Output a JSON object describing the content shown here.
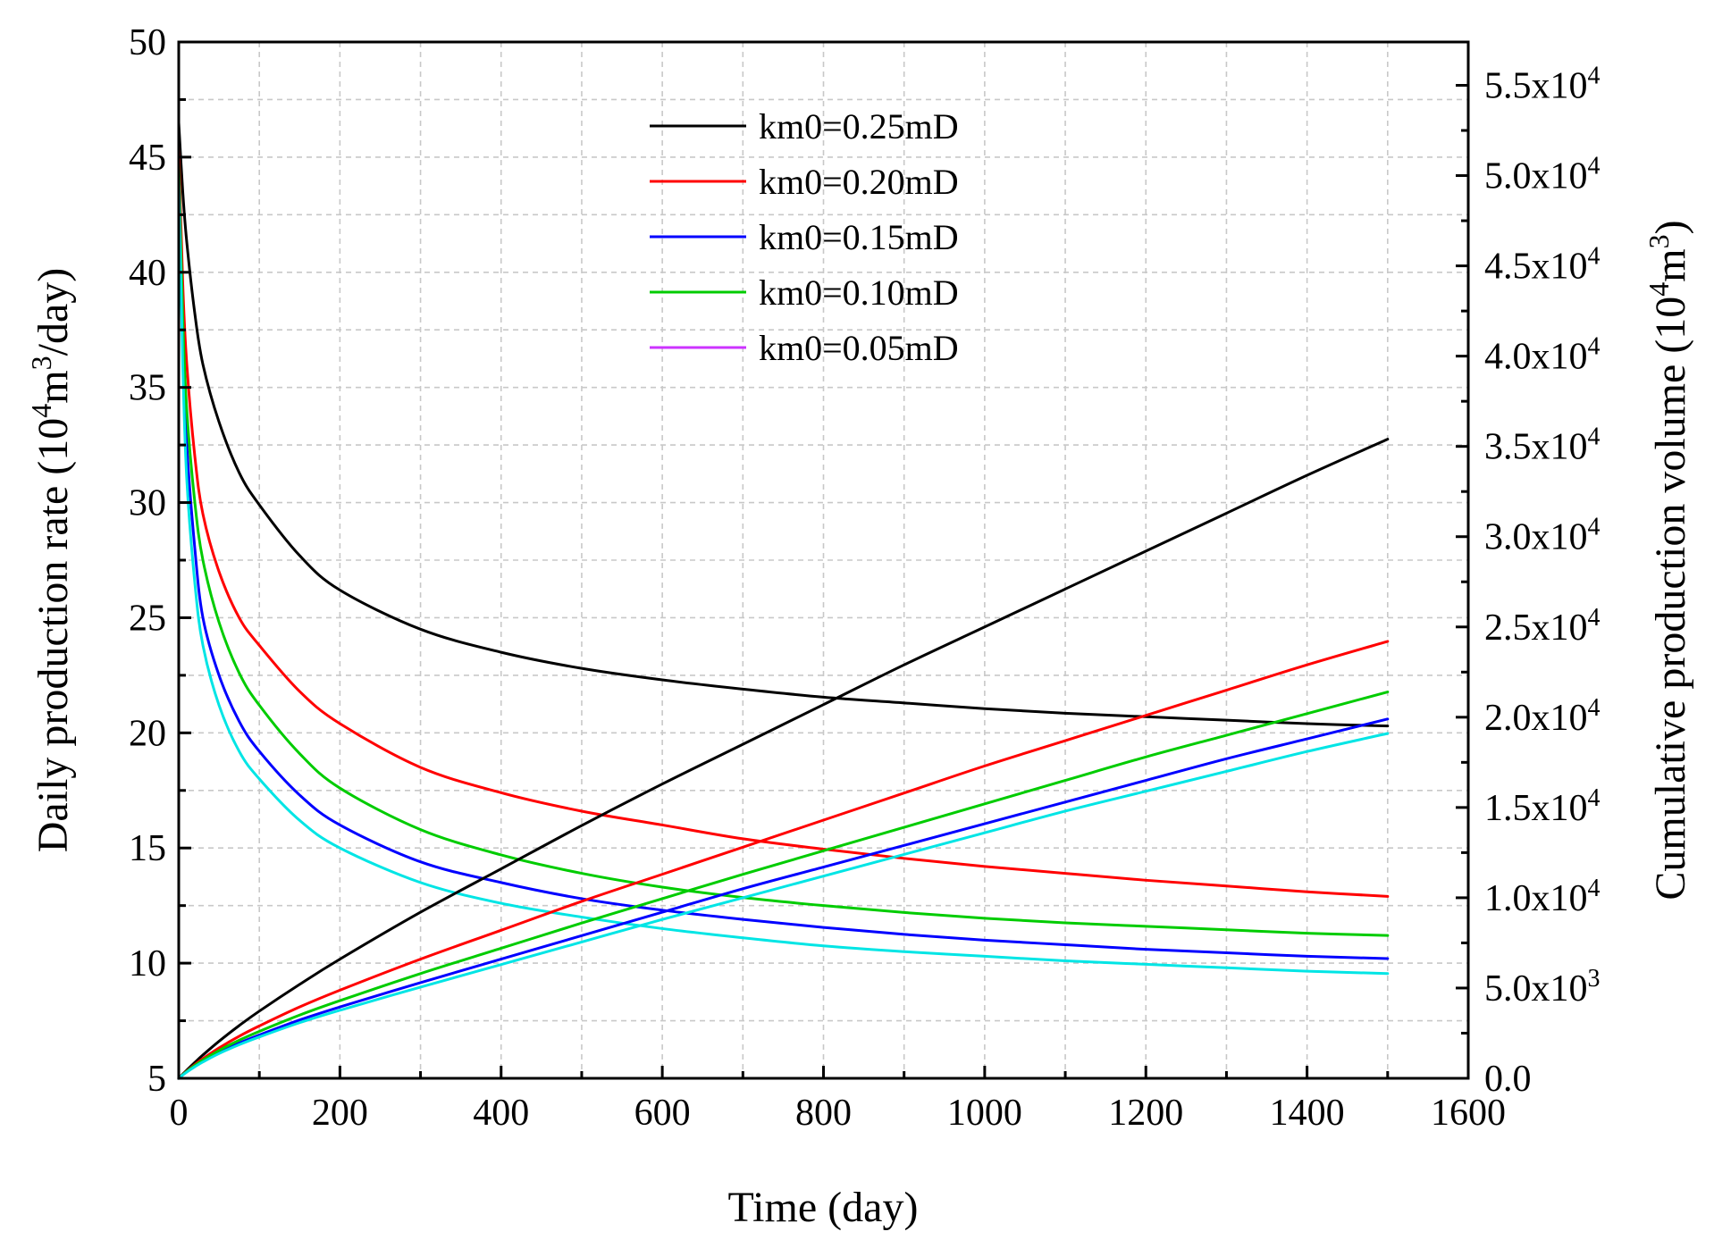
{
  "chart_data": {
    "type": "line",
    "title": "",
    "xlabel": "Time (day)",
    "ylabel": "Daily production rate (10^4m^3/day)",
    "ylabel_parts": [
      "Daily production rate (10",
      "4",
      "m",
      "3",
      "/day)"
    ],
    "y2label": "Cumulative production volume (10^4m^3)",
    "y2label_parts": [
      "Cumulative production volume (10",
      "4",
      "m",
      "3",
      ")"
    ],
    "xlim": [
      0,
      1600
    ],
    "ylim": [
      5,
      50
    ],
    "y2lim": [
      0,
      57400
    ],
    "x_ticks": [
      "0",
      "200",
      "400",
      "600",
      "800",
      "1000",
      "1200",
      "1400",
      "1600"
    ],
    "y_ticks": [
      "5",
      "10",
      "15",
      "20",
      "25",
      "30",
      "35",
      "40",
      "45",
      "50"
    ],
    "y2_ticks": [
      {
        "value": 0,
        "base": "0.0",
        "exp": ""
      },
      {
        "value": 5000,
        "base": "5.0x10",
        "exp": "3"
      },
      {
        "value": 10000,
        "base": "1.0x10",
        "exp": "4"
      },
      {
        "value": 15000,
        "base": "1.5x10",
        "exp": "4"
      },
      {
        "value": 20000,
        "base": "2.0x10",
        "exp": "4"
      },
      {
        "value": 25000,
        "base": "2.5x10",
        "exp": "4"
      },
      {
        "value": 30000,
        "base": "3.0x10",
        "exp": "4"
      },
      {
        "value": 35000,
        "base": "3.5x10",
        "exp": "4"
      },
      {
        "value": 40000,
        "base": "4.0x10",
        "exp": "4"
      },
      {
        "value": 45000,
        "base": "4.5x10",
        "exp": "4"
      },
      {
        "value": 50000,
        "base": "5.0x10",
        "exp": "4"
      },
      {
        "value": 55000,
        "base": "5.5x10",
        "exp": "4"
      }
    ],
    "grid": true,
    "legend_position": "top-center",
    "legend": [
      "km0=0.25mD",
      "km0=0.20mD",
      "km0=0.15mD",
      "km0=0.10mD",
      "km0=0.05mD"
    ],
    "legend_colors": [
      "#000000",
      "#ff0000",
      "#0000ff",
      "#00cc00",
      "#cc33ff"
    ],
    "x": [
      0,
      5,
      10,
      20,
      30,
      50,
      75,
      100,
      150,
      200,
      300,
      400,
      500,
      600,
      700,
      800,
      900,
      1000,
      1100,
      1200,
      1300,
      1400,
      1500
    ],
    "series": [
      {
        "name": "km0=0.25mD rate",
        "axis": "left",
        "color": "#000000",
        "values": [
          46.5,
          43.5,
          41.3,
          38.2,
          36.0,
          33.5,
          31.3,
          29.9,
          27.7,
          26.2,
          24.5,
          23.5,
          22.8,
          22.3,
          21.9,
          21.55,
          21.3,
          21.05,
          20.85,
          20.7,
          20.55,
          20.4,
          20.3
        ]
      },
      {
        "name": "km0=0.20mD rate",
        "axis": "left",
        "color": "#ff0000",
        "values": [
          45.5,
          39.5,
          36.0,
          32.0,
          29.5,
          27.0,
          25.0,
          23.8,
          21.8,
          20.4,
          18.5,
          17.4,
          16.6,
          16.0,
          15.4,
          14.95,
          14.55,
          14.2,
          13.9,
          13.6,
          13.35,
          13.1,
          12.9
        ]
      },
      {
        "name": "km0=0.15mD rate",
        "axis": "left",
        "color": "#0000ff",
        "values": [
          44.5,
          37.0,
          32.5,
          28.0,
          25.0,
          22.5,
          20.5,
          19.2,
          17.3,
          16.0,
          14.4,
          13.5,
          12.8,
          12.3,
          11.9,
          11.55,
          11.25,
          11.0,
          10.8,
          10.6,
          10.45,
          10.3,
          10.2
        ]
      },
      {
        "name": "km0=0.10mD rate",
        "axis": "left",
        "color": "#00cc00",
        "values": [
          44.8,
          38.0,
          34.0,
          30.0,
          27.5,
          24.8,
          22.6,
          21.2,
          19.1,
          17.6,
          15.8,
          14.7,
          13.9,
          13.3,
          12.85,
          12.5,
          12.2,
          11.95,
          11.75,
          11.6,
          11.45,
          11.3,
          11.2
        ]
      },
      {
        "name": "km0=0.05mD rate",
        "axis": "left",
        "color": "#00e5e5",
        "values": [
          44.2,
          36.0,
          31.0,
          26.5,
          23.8,
          21.2,
          19.2,
          18.0,
          16.2,
          15.0,
          13.5,
          12.6,
          12.0,
          11.5,
          11.1,
          10.75,
          10.5,
          10.3,
          10.1,
          9.95,
          9.8,
          9.65,
          9.55
        ]
      },
      {
        "name": "km0=0.25mD cumulative",
        "axis": "right",
        "color": "#000000",
        "values": [
          0,
          230,
          450,
          880,
          1290,
          2050,
          2920,
          3720,
          5200,
          6600,
          9200,
          11600,
          14000,
          16300,
          18500,
          20700,
          22900,
          25000,
          27100,
          29200,
          31300,
          33400,
          35400
        ]
      },
      {
        "name": "km0=0.20mD cumulative",
        "axis": "right",
        "color": "#ff0000",
        "values": [
          0,
          210,
          400,
          760,
          1090,
          1680,
          2330,
          2900,
          3950,
          4880,
          6600,
          8200,
          9800,
          11300,
          12800,
          14300,
          15800,
          17300,
          18700,
          20100,
          21500,
          22900,
          24200
        ]
      },
      {
        "name": "km0=0.15mD cumulative",
        "axis": "right",
        "color": "#0000ff",
        "values": [
          0,
          190,
          360,
          670,
          950,
          1430,
          1950,
          2400,
          3230,
          3950,
          5300,
          6600,
          7900,
          9200,
          10500,
          11700,
          12900,
          14100,
          15300,
          16500,
          17700,
          18800,
          19900
        ]
      },
      {
        "name": "km0=0.10mD cumulative",
        "axis": "right",
        "color": "#00cc00",
        "values": [
          0,
          200,
          380,
          710,
          1010,
          1540,
          2110,
          2600,
          3500,
          4300,
          5800,
          7200,
          8600,
          9950,
          11300,
          12600,
          13900,
          15200,
          16500,
          17800,
          19000,
          20200,
          21400
        ]
      },
      {
        "name": "km0=0.05mD cumulative",
        "axis": "right",
        "color": "#00e5e5",
        "values": [
          0,
          180,
          345,
          640,
          905,
          1370,
          1860,
          2290,
          3080,
          3770,
          5050,
          6300,
          7550,
          8800,
          10000,
          11200,
          12400,
          13600,
          14800,
          15900,
          17000,
          18100,
          19100
        ]
      }
    ]
  }
}
